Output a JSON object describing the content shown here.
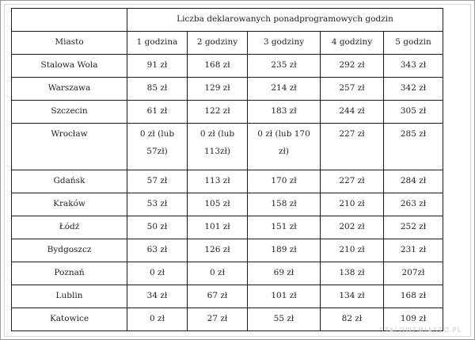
{
  "table": {
    "title": "Liczba deklarowanych ponadprogramowych godzin",
    "headers": [
      "Miasto",
      "1 godzina",
      "2 godziny",
      "3 godziny",
      "4 godziny",
      "5 godzin"
    ],
    "rows": [
      [
        "Stalowa Wola",
        "91 zł",
        "168 zł",
        "235 zł",
        "292 zł",
        "343 zł"
      ],
      [
        "Warszawa",
        "85 zł",
        "129 zł",
        "214 zł",
        "257 zł",
        "342 zł"
      ],
      [
        "Szczecin",
        "61 zł",
        "122 zł",
        "183 zł",
        "244 zł",
        "305 zł"
      ],
      [
        "Wrocław",
        "0 zł (lub 57zł)",
        "0 zł (lub 113zł)",
        "0 zł (lub 170 zł)",
        "227 zł",
        "285 zł"
      ],
      [
        "Gdańsk",
        "57 zł",
        "113 zł",
        "170 zł",
        "227 zł",
        "284 zł"
      ],
      [
        "Kraków",
        "53 zł",
        "105 zł",
        "158 zł",
        "210 zł",
        "263 zł"
      ],
      [
        "Łódź",
        "50 zł",
        "101 zł",
        "151 zł",
        "202 zł",
        "252 zł"
      ],
      [
        "Bydgoszcz",
        "63 zł",
        "126 zł",
        "189 zł",
        "210 zł",
        "231 zł"
      ],
      [
        "Poznań",
        "0 zł",
        "0 zł",
        "69 zł",
        "138 zł",
        "207zł"
      ],
      [
        "Lublin",
        "34 zł",
        "67 zł",
        "101 zł",
        "134 zł",
        "168 zł"
      ],
      [
        "Katowice",
        "0 zł",
        "27 zł",
        "55 zł",
        "82 zł",
        "109 zł"
      ]
    ]
  },
  "watermark": "STALOWEMIASTO.PL"
}
